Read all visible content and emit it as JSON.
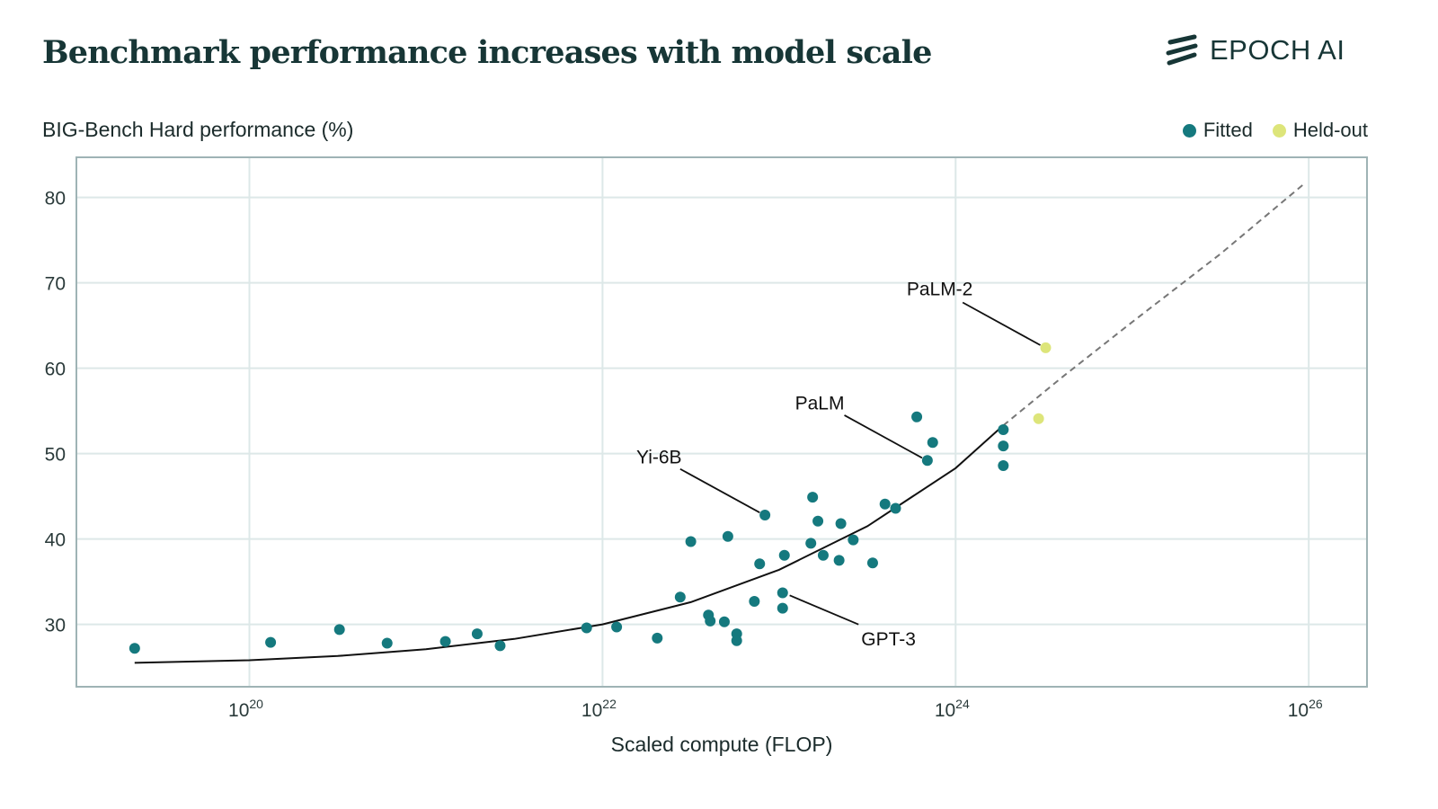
{
  "header": {
    "title": "Benchmark performance increases with model scale",
    "logo_text": "EPOCH AI"
  },
  "chart_data": {
    "type": "scatter",
    "title": "Benchmark performance increases with model scale",
    "ylabel": "BIG-Bench Hard performance (%)",
    "xlabel": "Scaled compute (FLOP)",
    "xscale": "log10",
    "xlim_log10": [
      19.02,
      26.33
    ],
    "ylim": [
      22.7,
      84.7
    ],
    "yticks": [
      30,
      40,
      50,
      60,
      70,
      80
    ],
    "xticks": [
      {
        "exp": 20,
        "base": "10",
        "sup": "20"
      },
      {
        "exp": 22,
        "base": "10",
        "sup": "22"
      },
      {
        "exp": 24,
        "base": "10",
        "sup": "24"
      },
      {
        "exp": 26,
        "base": "10",
        "sup": "26"
      }
    ],
    "grid": true,
    "legend_position": "top-right",
    "colors": {
      "fitted": "#15797e",
      "heldout": "#dde57a",
      "fit_line": "#111111",
      "extrapolation": "#777777",
      "grid": "#dde8e8",
      "frame": "#9fb3b5"
    },
    "legend": [
      {
        "name": "Fitted",
        "color": "#15797e"
      },
      {
        "name": "Held-out",
        "color": "#dde57a"
      }
    ],
    "series": [
      {
        "name": "Fitted",
        "points": [
          [
            19.35,
            27.2
          ],
          [
            20.12,
            27.9
          ],
          [
            20.51,
            29.4
          ],
          [
            20.78,
            27.8
          ],
          [
            21.11,
            28.0
          ],
          [
            21.29,
            28.9
          ],
          [
            21.42,
            27.5
          ],
          [
            21.91,
            29.6
          ],
          [
            22.08,
            29.7
          ],
          [
            22.31,
            28.4
          ],
          [
            22.44,
            33.2
          ],
          [
            22.5,
            39.7
          ],
          [
            22.6,
            31.1
          ],
          [
            22.61,
            30.4
          ],
          [
            22.69,
            30.3
          ],
          [
            22.71,
            40.3
          ],
          [
            22.76,
            28.9
          ],
          [
            22.76,
            28.1
          ],
          [
            22.86,
            32.7
          ],
          [
            22.89,
            37.1
          ],
          [
            22.92,
            42.8
          ],
          [
            23.02,
            33.7
          ],
          [
            23.02,
            31.9
          ],
          [
            23.03,
            38.1
          ],
          [
            23.18,
            39.5
          ],
          [
            23.19,
            44.9
          ],
          [
            23.22,
            42.1
          ],
          [
            23.25,
            38.1
          ],
          [
            23.34,
            37.5
          ],
          [
            23.35,
            41.8
          ],
          [
            23.42,
            39.9
          ],
          [
            23.53,
            37.2
          ],
          [
            23.6,
            44.1
          ],
          [
            23.66,
            43.6
          ],
          [
            23.78,
            54.3
          ],
          [
            23.84,
            49.2
          ],
          [
            23.87,
            51.3
          ],
          [
            24.27,
            52.8
          ],
          [
            24.27,
            50.9
          ],
          [
            24.27,
            48.6
          ]
        ]
      },
      {
        "name": "Held-out",
        "points": [
          [
            24.51,
            62.4
          ],
          [
            24.47,
            54.1
          ]
        ]
      }
    ],
    "fit_curve": [
      [
        19.35,
        25.5
      ],
      [
        20,
        25.8
      ],
      [
        20.5,
        26.3
      ],
      [
        21,
        27.1
      ],
      [
        21.5,
        28.3
      ],
      [
        22,
        30.0
      ],
      [
        22.5,
        32.6
      ],
      [
        23,
        36.4
      ],
      [
        23.5,
        41.5
      ],
      [
        24,
        48.3
      ],
      [
        24.27,
        53.3
      ]
    ],
    "extrapolation": [
      [
        24.27,
        53.3
      ],
      [
        24.6,
        58.9
      ],
      [
        25,
        65.4
      ],
      [
        25.5,
        73.4
      ],
      [
        25.98,
        81.7
      ]
    ],
    "annotations": [
      {
        "text": "PaLM-2",
        "x": 23.91,
        "y": 69.4,
        "line_from": [
          24.04,
          67.7
        ],
        "line_to": [
          24.48,
          62.7
        ]
      },
      {
        "text": "PaLM",
        "x": 23.23,
        "y": 56.0,
        "line_from": [
          23.37,
          54.5
        ],
        "line_to": [
          23.81,
          49.5
        ]
      },
      {
        "text": "Yi-6B",
        "x": 22.32,
        "y": 49.7,
        "line_from": [
          22.44,
          48.2
        ],
        "line_to": [
          22.89,
          43.1
        ]
      },
      {
        "text": "GPT-3",
        "x": 23.62,
        "y": 28.4,
        "line_from": [
          23.45,
          30.0
        ],
        "line_to": [
          23.06,
          33.4
        ]
      }
    ]
  }
}
